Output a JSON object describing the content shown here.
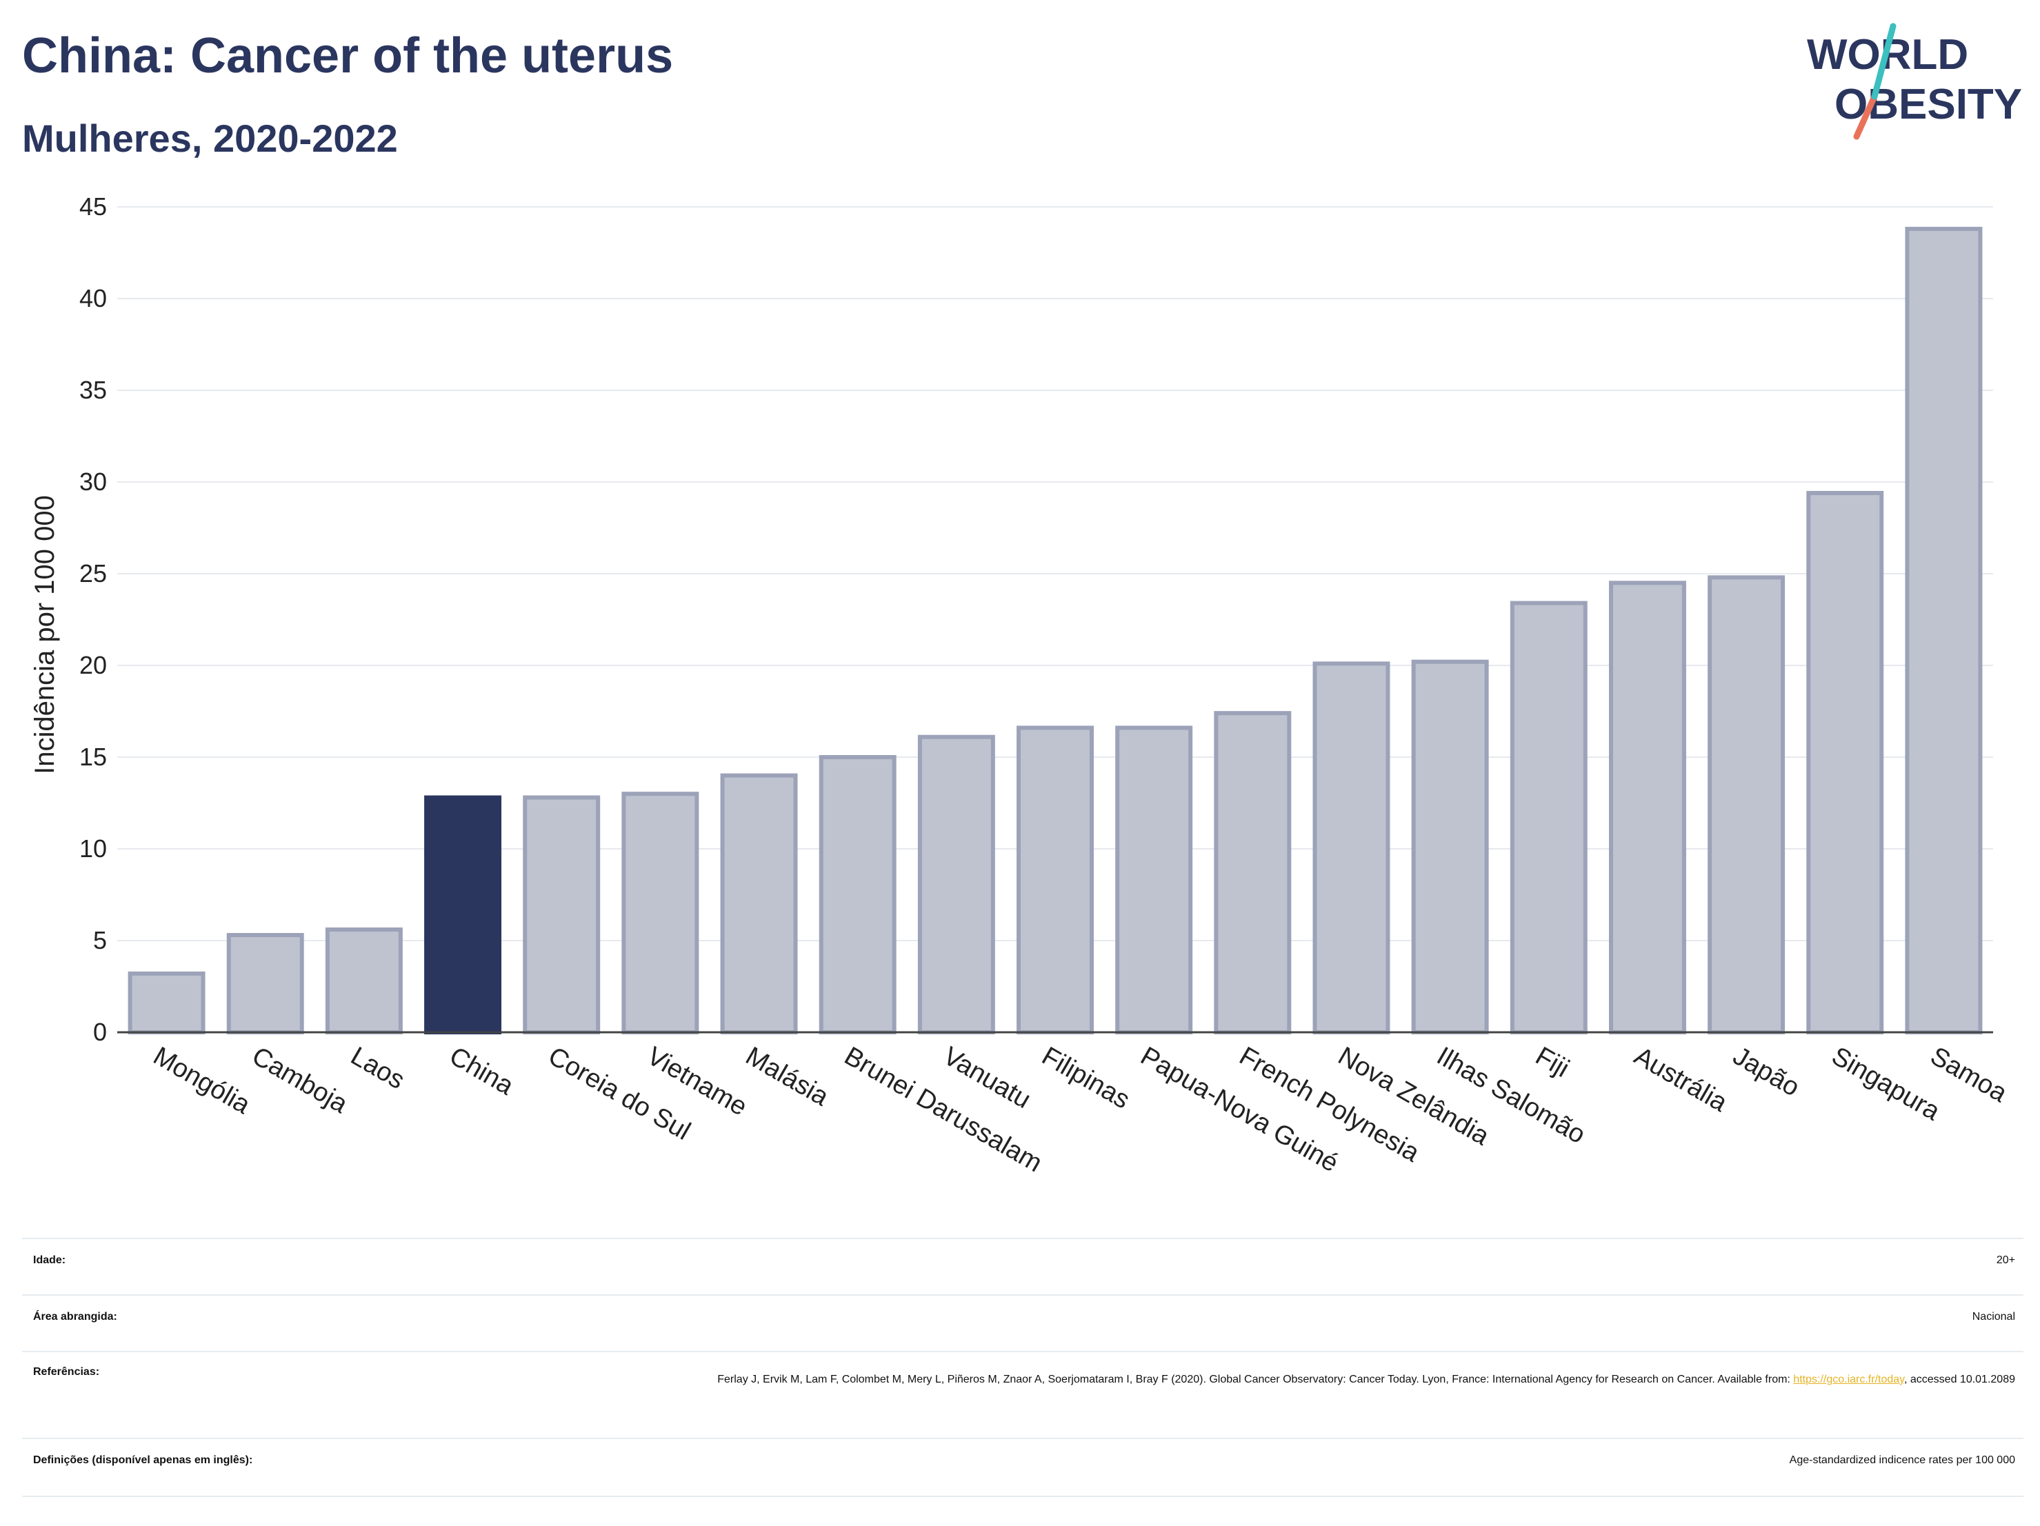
{
  "header": {
    "title": "China: Cancer of the uterus",
    "subtitle": "Mulheres, 2020-2022",
    "logo_line1": "WORLD",
    "logo_line2": "OBESITY"
  },
  "colors": {
    "highlight": "#2b365f",
    "bar_fill": "#bfc3d0",
    "bar_stroke": "#9ca2b8",
    "logo_teal": "#3bbfbf",
    "logo_coral": "#e8735a",
    "link": "#e6b325"
  },
  "chart_data": {
    "type": "bar",
    "title": "China: Cancer of the uterus",
    "subtitle": "Mulheres, 2020-2022",
    "xlabel": "",
    "ylabel": "Incidência por 100 000",
    "ylim": [
      0,
      45
    ],
    "yticks": [
      0,
      5,
      10,
      15,
      20,
      25,
      30,
      35,
      40,
      45
    ],
    "grid": true,
    "highlight_category": "China",
    "categories": [
      "Mongólia",
      "Camboja",
      "Laos",
      "China",
      "Coreia do Sul",
      "Vietname",
      "Malásia",
      "Brunei Darussalam",
      "Vanuatu",
      "Filipinas",
      "Papua-Nova Guiné",
      "French Polynesia",
      "Nova Zelândia",
      "Ilhas Salomão",
      "Fiji",
      "Austrália",
      "Japão",
      "Singapura",
      "Samoa"
    ],
    "values": [
      3.2,
      5.3,
      5.6,
      12.8,
      12.8,
      13.0,
      14.0,
      15.0,
      16.1,
      16.6,
      16.6,
      17.4,
      20.1,
      20.2,
      23.4,
      24.5,
      24.8,
      29.4,
      43.8
    ]
  },
  "info": {
    "age_label": "Idade:",
    "age_value": "20+",
    "area_label": "Área abrangida:",
    "area_value": "Nacional",
    "ref_label": "Referências:",
    "ref_text_1": "Ferlay J, Ervik M, Lam F, Colombet M, Mery L, Piñeros M, Znaor A, Soerjomataram I, Bray F (2020). Global Cancer Observatory: Cancer Today. Lyon, France: International Agency for Research on Cancer. Available from: ",
    "ref_link": "https://gco.iarc.fr/today",
    "ref_text_2": ", accessed 10.01.2089",
    "def_label": "Definições (disponível apenas em inglês):",
    "def_value": "Age-standardized indicence rates per 100 000"
  }
}
